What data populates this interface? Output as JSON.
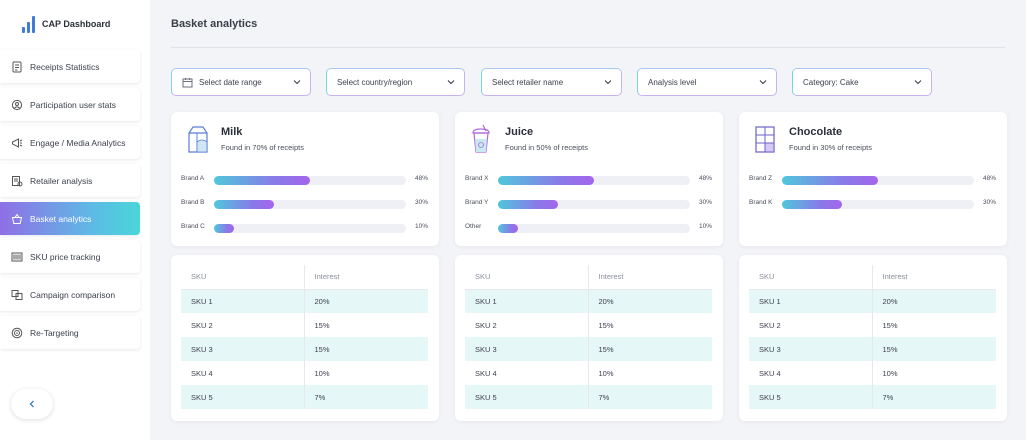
{
  "app": {
    "title": "CAP Dashboard"
  },
  "sidebar": {
    "items": [
      {
        "label": "Receipts Statistics",
        "icon": "receipt-icon",
        "active": false
      },
      {
        "label": "Participation user stats",
        "icon": "user-search-icon",
        "active": false
      },
      {
        "label": "Engage / Media Analytics",
        "icon": "megaphone-icon",
        "active": false
      },
      {
        "label": "Retailer analysis",
        "icon": "retail-receipt-icon",
        "active": false
      },
      {
        "label": "Basket analytics",
        "icon": "basket-icon",
        "active": true
      },
      {
        "label": "SKU price tracking",
        "icon": "barcode-icon",
        "active": false
      },
      {
        "label": "Campaign comparison",
        "icon": "compare-icon",
        "active": false
      },
      {
        "label": "Re-Targeting",
        "icon": "target-icon",
        "active": false
      }
    ],
    "collapse_icon": "chevron-left-icon"
  },
  "page": {
    "title": "Basket analytics"
  },
  "filters": [
    {
      "label": "Select date range",
      "has_calendar": true
    },
    {
      "label": "Select country/region",
      "has_calendar": false
    },
    {
      "label": "Select retailer name",
      "has_calendar": false
    },
    {
      "label": "Analysis level",
      "has_calendar": false
    },
    {
      "label": "Category: Cake",
      "has_calendar": false
    }
  ],
  "products": [
    {
      "name": "Milk",
      "found": "Found in 70% of receipts",
      "icon": "milk-carton-icon",
      "brands": [
        {
          "name": "Brand A",
          "pct": "48%",
          "value": 48
        },
        {
          "name": "Brand B",
          "pct": "30%",
          "value": 30
        },
        {
          "name": "Brand C",
          "pct": "10%",
          "value": 10
        }
      ]
    },
    {
      "name": "Juice",
      "found": "Found in 50% of receipts",
      "icon": "juice-cup-icon",
      "brands": [
        {
          "name": "Brand X",
          "pct": "48%",
          "value": 48
        },
        {
          "name": "Brand Y",
          "pct": "30%",
          "value": 30
        },
        {
          "name": "Other",
          "pct": "10%",
          "value": 10
        }
      ]
    },
    {
      "name": "Chocolate",
      "found": "Found in 30% of receipts",
      "icon": "chocolate-bar-icon",
      "brands": [
        {
          "name": "Brand Z",
          "pct": "48%",
          "value": 48
        },
        {
          "name": "Brand K",
          "pct": "30%",
          "value": 30
        }
      ]
    }
  ],
  "sku_tables": [
    {
      "headers": [
        "SKU",
        "Interest"
      ],
      "rows": [
        [
          "SKU 1",
          "20%"
        ],
        [
          "SKU 2",
          "15%"
        ],
        [
          "SKU 3",
          "15%"
        ],
        [
          "SKU 4",
          "10%"
        ],
        [
          "SKU 5",
          "7%"
        ]
      ]
    },
    {
      "headers": [
        "SKU",
        "Interest"
      ],
      "rows": [
        [
          "SKU 1",
          "20%"
        ],
        [
          "SKU 2",
          "15%"
        ],
        [
          "SKU 3",
          "15%"
        ],
        [
          "SKU 4",
          "10%"
        ],
        [
          "SKU 5",
          "7%"
        ]
      ]
    },
    {
      "headers": [
        "SKU",
        "Interest"
      ],
      "rows": [
        [
          "SKU 1",
          "20%"
        ],
        [
          "SKU 2",
          "15%"
        ],
        [
          "SKU 3",
          "15%"
        ],
        [
          "SKU 4",
          "10%"
        ],
        [
          "SKU 5",
          "7%"
        ]
      ]
    }
  ],
  "colors": {
    "accent_start": "#4fc7dc",
    "accent_end": "#a365ec",
    "row_shade": "#e6f7f8",
    "logo_blue": "#3f7bd8"
  }
}
